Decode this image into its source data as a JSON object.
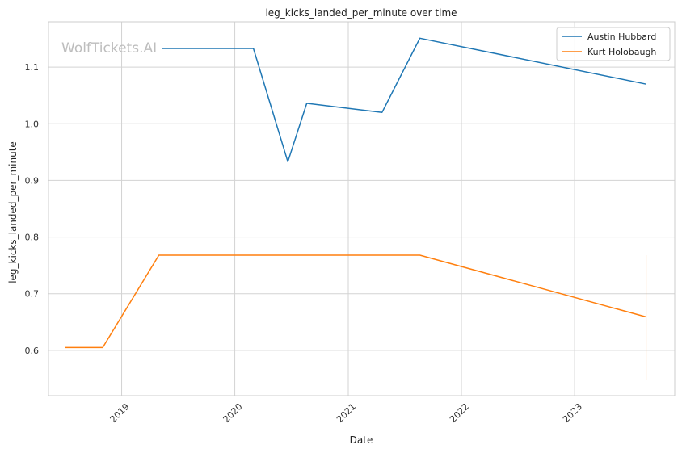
{
  "watermark": "WolfTickets.AI",
  "chart_data": {
    "type": "line",
    "title": "leg_kicks_landed_per_minute over time",
    "xlabel": "Date",
    "ylabel": "leg_kicks_landed_per_minute",
    "x_ticks": [
      "2019",
      "2020",
      "2021",
      "2022",
      "2023"
    ],
    "y_ticks": [
      "0.6",
      "0.7",
      "0.8",
      "0.9",
      "1.0",
      "1.1"
    ],
    "xlim": [
      "2018-05-10",
      "2023-11-20"
    ],
    "ylim": [
      0.52,
      1.18
    ],
    "grid": true,
    "legend_position": "top-right",
    "series": [
      {
        "name": "Austin Hubbard",
        "color": "#1f77b4",
        "x": [
          "2019-05-10",
          "2020-03-01",
          "2020-06-20",
          "2020-08-20",
          "2021-04-20",
          "2021-08-20",
          "2023-08-20"
        ],
        "values": [
          1.133,
          1.133,
          0.933,
          1.036,
          1.02,
          1.151,
          1.07
        ]
      },
      {
        "name": "Kurt Holobaugh",
        "color": "#ff7f0e",
        "x": [
          "2018-07-01",
          "2018-11-01",
          "2019-05-01",
          "2021-08-20",
          "2023-08-20"
        ],
        "values": [
          0.605,
          0.605,
          0.768,
          0.768,
          0.659
        ]
      }
    ]
  }
}
